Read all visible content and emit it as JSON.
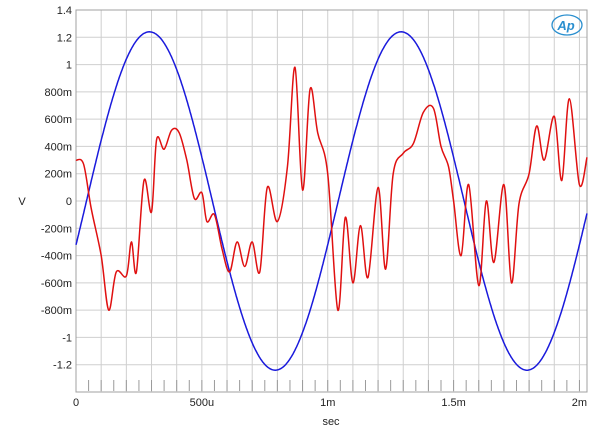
{
  "chart_data": {
    "type": "line",
    "title": "",
    "xlabel": "sec",
    "ylabel": "V",
    "xlim": [
      0,
      0.00203
    ],
    "ylim": [
      -1.4,
      1.4
    ],
    "grid": true,
    "x_ticks": [
      {
        "value": 0,
        "label": "0"
      },
      {
        "value": 0.0005,
        "label": "500u"
      },
      {
        "value": 0.001,
        "label": "1m"
      },
      {
        "value": 0.0015,
        "label": "1.5m"
      },
      {
        "value": 0.002,
        "label": "2m"
      }
    ],
    "y_ticks": [
      {
        "value": 1.4,
        "label": "1.4"
      },
      {
        "value": 1.2,
        "label": "1.2"
      },
      {
        "value": 1.0,
        "label": "1"
      },
      {
        "value": 0.8,
        "label": "800m"
      },
      {
        "value": 0.6,
        "label": "600m"
      },
      {
        "value": 0.4,
        "label": "400m"
      },
      {
        "value": 0.2,
        "label": "200m"
      },
      {
        "value": 0,
        "label": "0"
      },
      {
        "value": -0.2,
        "label": "-200m"
      },
      {
        "value": -0.4,
        "label": "-400m"
      },
      {
        "value": -0.6,
        "label": "-600m"
      },
      {
        "value": -0.8,
        "label": "-800m"
      },
      {
        "value": -1.0,
        "label": "-1"
      },
      {
        "value": -1.2,
        "label": "-1.2"
      }
    ],
    "series": [
      {
        "color": "#1a1adc",
        "waveform": "sine",
        "amplitude": 1.24,
        "frequency_hz": 1000,
        "phase_deg": -15
      },
      {
        "color": "#e01010",
        "x": [
          0,
          3e-05,
          6e-05,
          0.0001,
          0.00013,
          0.00016,
          0.0002,
          0.00022,
          0.00024,
          0.00027,
          0.0003,
          0.00032,
          0.00035,
          0.00038,
          0.00041,
          0.00044,
          0.00047,
          0.0005,
          0.00052,
          0.00055,
          0.00058,
          0.00061,
          0.00064,
          0.00067,
          0.0007,
          0.00073,
          0.00076,
          0.0008,
          0.00084,
          0.00087,
          0.0009,
          0.00093,
          0.00096,
          0.001,
          0.00104,
          0.00107,
          0.0011,
          0.00113,
          0.00116,
          0.0012,
          0.00123,
          0.00126,
          0.0013,
          0.00134,
          0.00138,
          0.00142,
          0.00145,
          0.00148,
          0.0015,
          0.00153,
          0.00156,
          0.0016,
          0.00163,
          0.00166,
          0.0017,
          0.00173,
          0.00176,
          0.0018,
          0.00183,
          0.00186,
          0.0019,
          0.00193,
          0.00196,
          0.002,
          0.00203
        ],
        "y": [
          0.3,
          0.27,
          -0.05,
          -0.4,
          -0.8,
          -0.52,
          -0.55,
          -0.3,
          -0.52,
          0.15,
          -0.08,
          0.45,
          0.38,
          0.52,
          0.5,
          0.3,
          0.02,
          0.06,
          -0.15,
          -0.1,
          -0.35,
          -0.52,
          -0.3,
          -0.48,
          -0.3,
          -0.52,
          0.1,
          -0.15,
          0.25,
          0.98,
          0.08,
          0.82,
          0.5,
          0.2,
          -0.8,
          -0.12,
          -0.6,
          -0.18,
          -0.56,
          0.1,
          -0.5,
          0.2,
          0.35,
          0.42,
          0.65,
          0.68,
          0.4,
          0.25,
          0.0,
          -0.4,
          0.12,
          -0.62,
          0.0,
          -0.45,
          0.12,
          -0.6,
          -0.02,
          0.2,
          0.55,
          0.3,
          0.62,
          0.15,
          0.75,
          0.12,
          0.32
        ]
      }
    ],
    "logo": "Ap"
  }
}
